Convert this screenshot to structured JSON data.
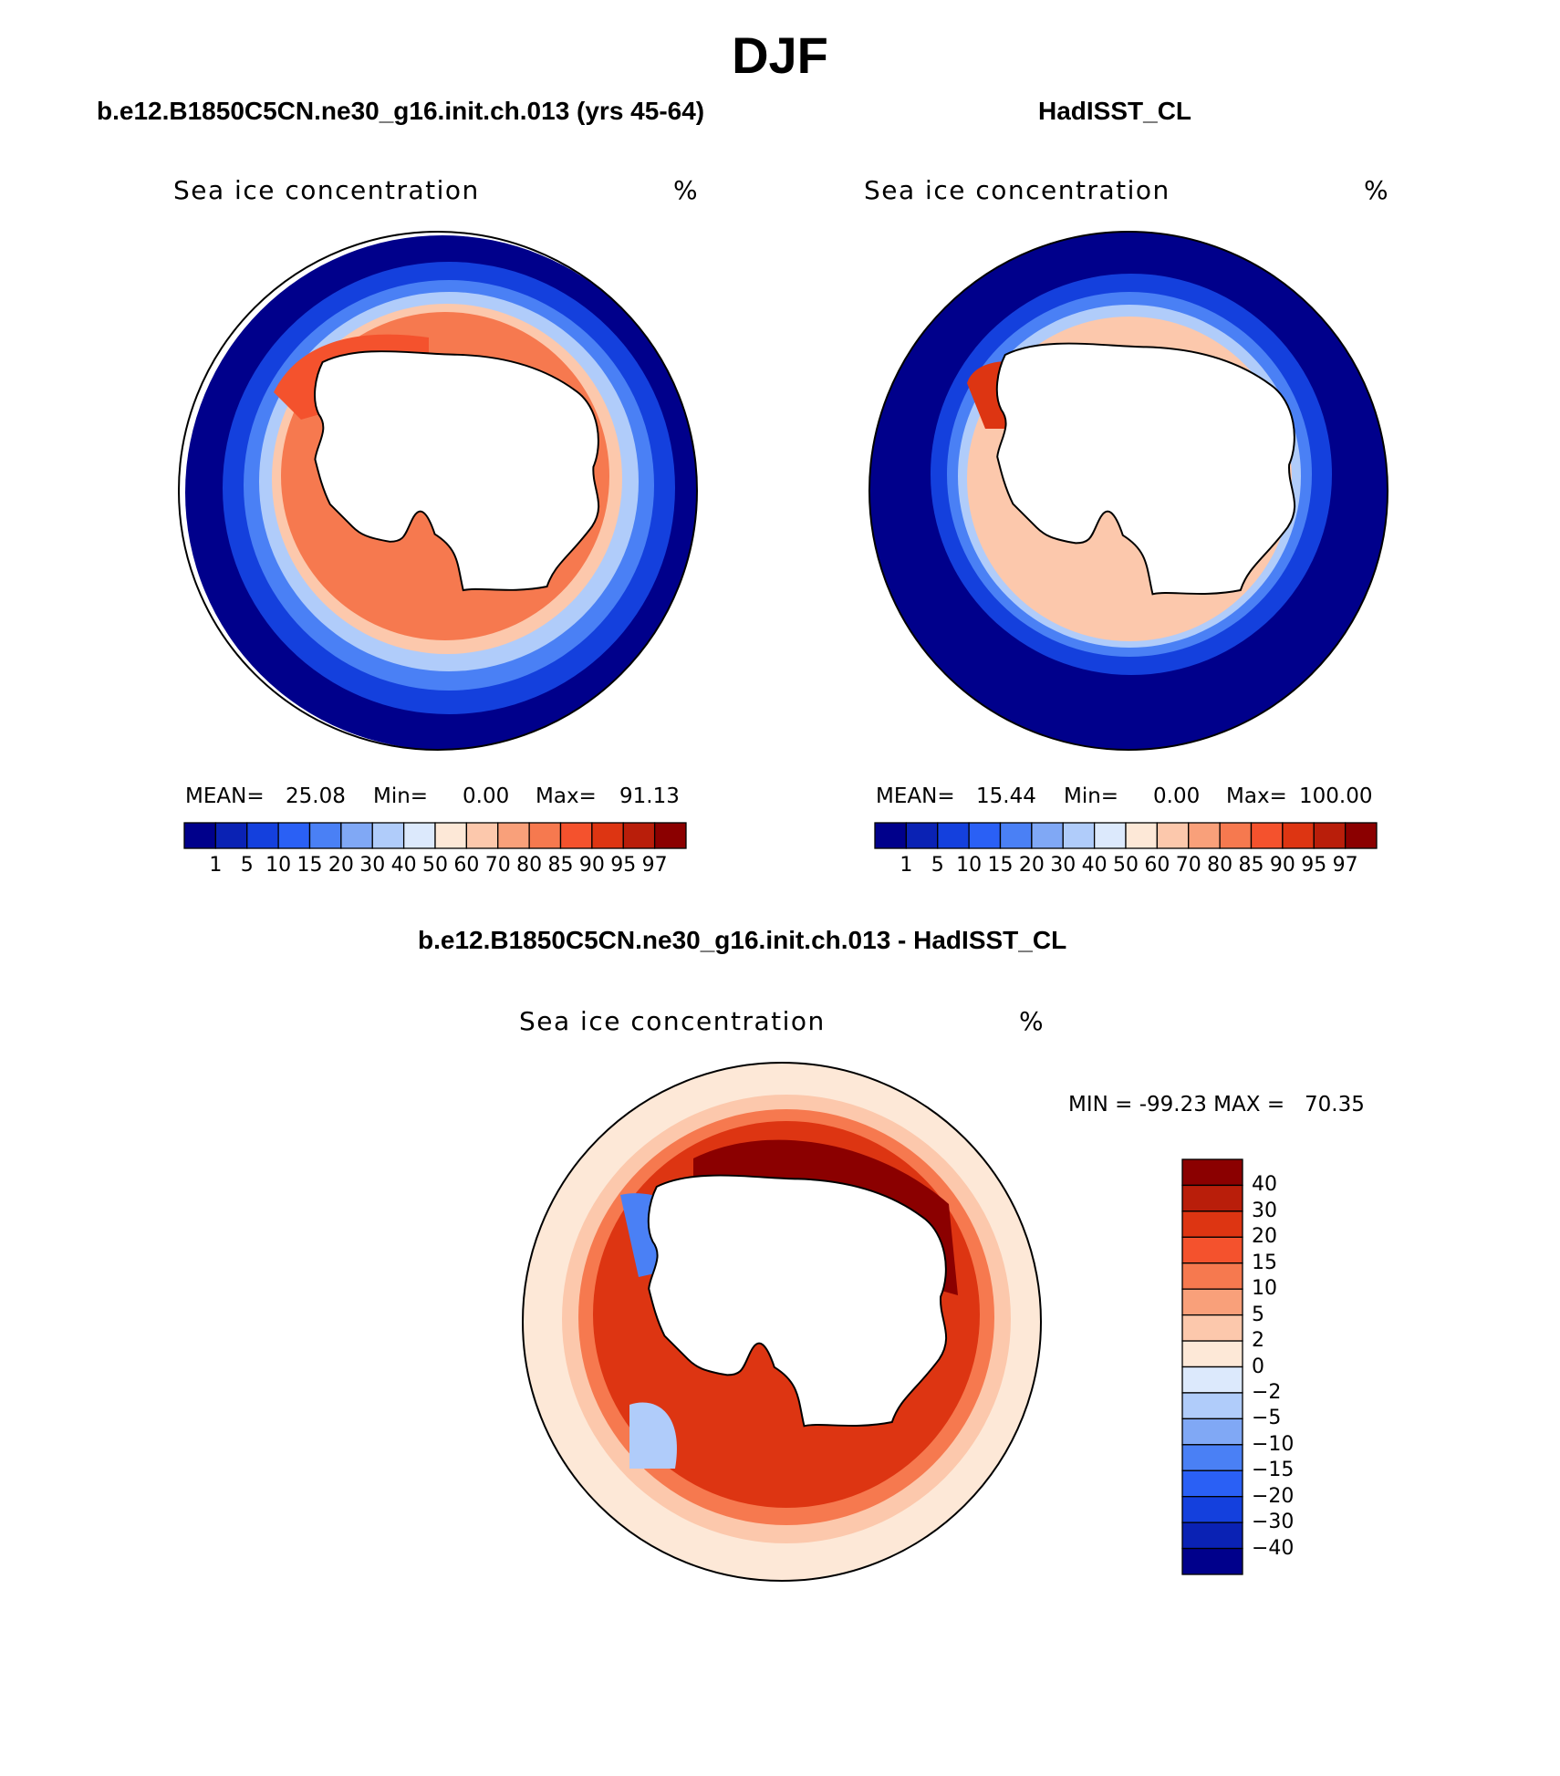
{
  "title": "DJF",
  "panels": [
    {
      "title": "b.e12.B1850C5CN.ne30_g16.init.ch.013 (yrs 45-64)",
      "variable": "Sea ice concentration",
      "units": "%",
      "mean_label": "MEAN=",
      "mean_value": "25.08",
      "min_label": "Min=",
      "min_value": "0.00",
      "max_label": "Max=",
      "max_value": "91.13"
    },
    {
      "title": "HadISST_CL",
      "variable": "Sea ice concentration",
      "units": "%",
      "mean_label": "MEAN=",
      "mean_value": "15.44",
      "min_label": "Min=",
      "min_value": "0.00",
      "max_label": "Max=",
      "max_value": "100.00"
    },
    {
      "title": "b.e12.B1850C5CN.ne30_g16.init.ch.013 - HadISST_CL",
      "variable": "Sea ice concentration",
      "units": "%",
      "minmax_label": "MIN = -99.23 MAX =   70.35"
    }
  ],
  "field_colorbar": {
    "labels": [
      "1",
      "5",
      "10",
      "15",
      "20",
      "30",
      "40",
      "50",
      "60",
      "70",
      "80",
      "85",
      "90",
      "95",
      "97"
    ],
    "colors": [
      "#00008b",
      "#0a22b4",
      "#1440dd",
      "#2a60f5",
      "#4a80f5",
      "#80a8f5",
      "#b0ccfa",
      "#dce9fc",
      "#fde8d7",
      "#fcc8ac",
      "#f9a07a",
      "#f6794f",
      "#f4522d",
      "#dd3512",
      "#b91e0a",
      "#8b0000"
    ]
  },
  "diff_colorbar": {
    "labels": [
      "40",
      "30",
      "20",
      "15",
      "10",
      "5",
      "2",
      "0",
      "-2",
      "-5",
      "-10",
      "-15",
      "-20",
      "-30",
      "-40"
    ],
    "colors": [
      "#8b0000",
      "#b91e0a",
      "#dd3512",
      "#f4522d",
      "#f6794f",
      "#f9a07a",
      "#fcc8ac",
      "#fde8d7",
      "#dce9fc",
      "#b0ccfa",
      "#80a8f5",
      "#4a80f5",
      "#2a60f5",
      "#1440dd",
      "#0a22b4",
      "#00008b"
    ]
  },
  "colors": {
    "land": "#ffffff",
    "outline": "#000000"
  }
}
